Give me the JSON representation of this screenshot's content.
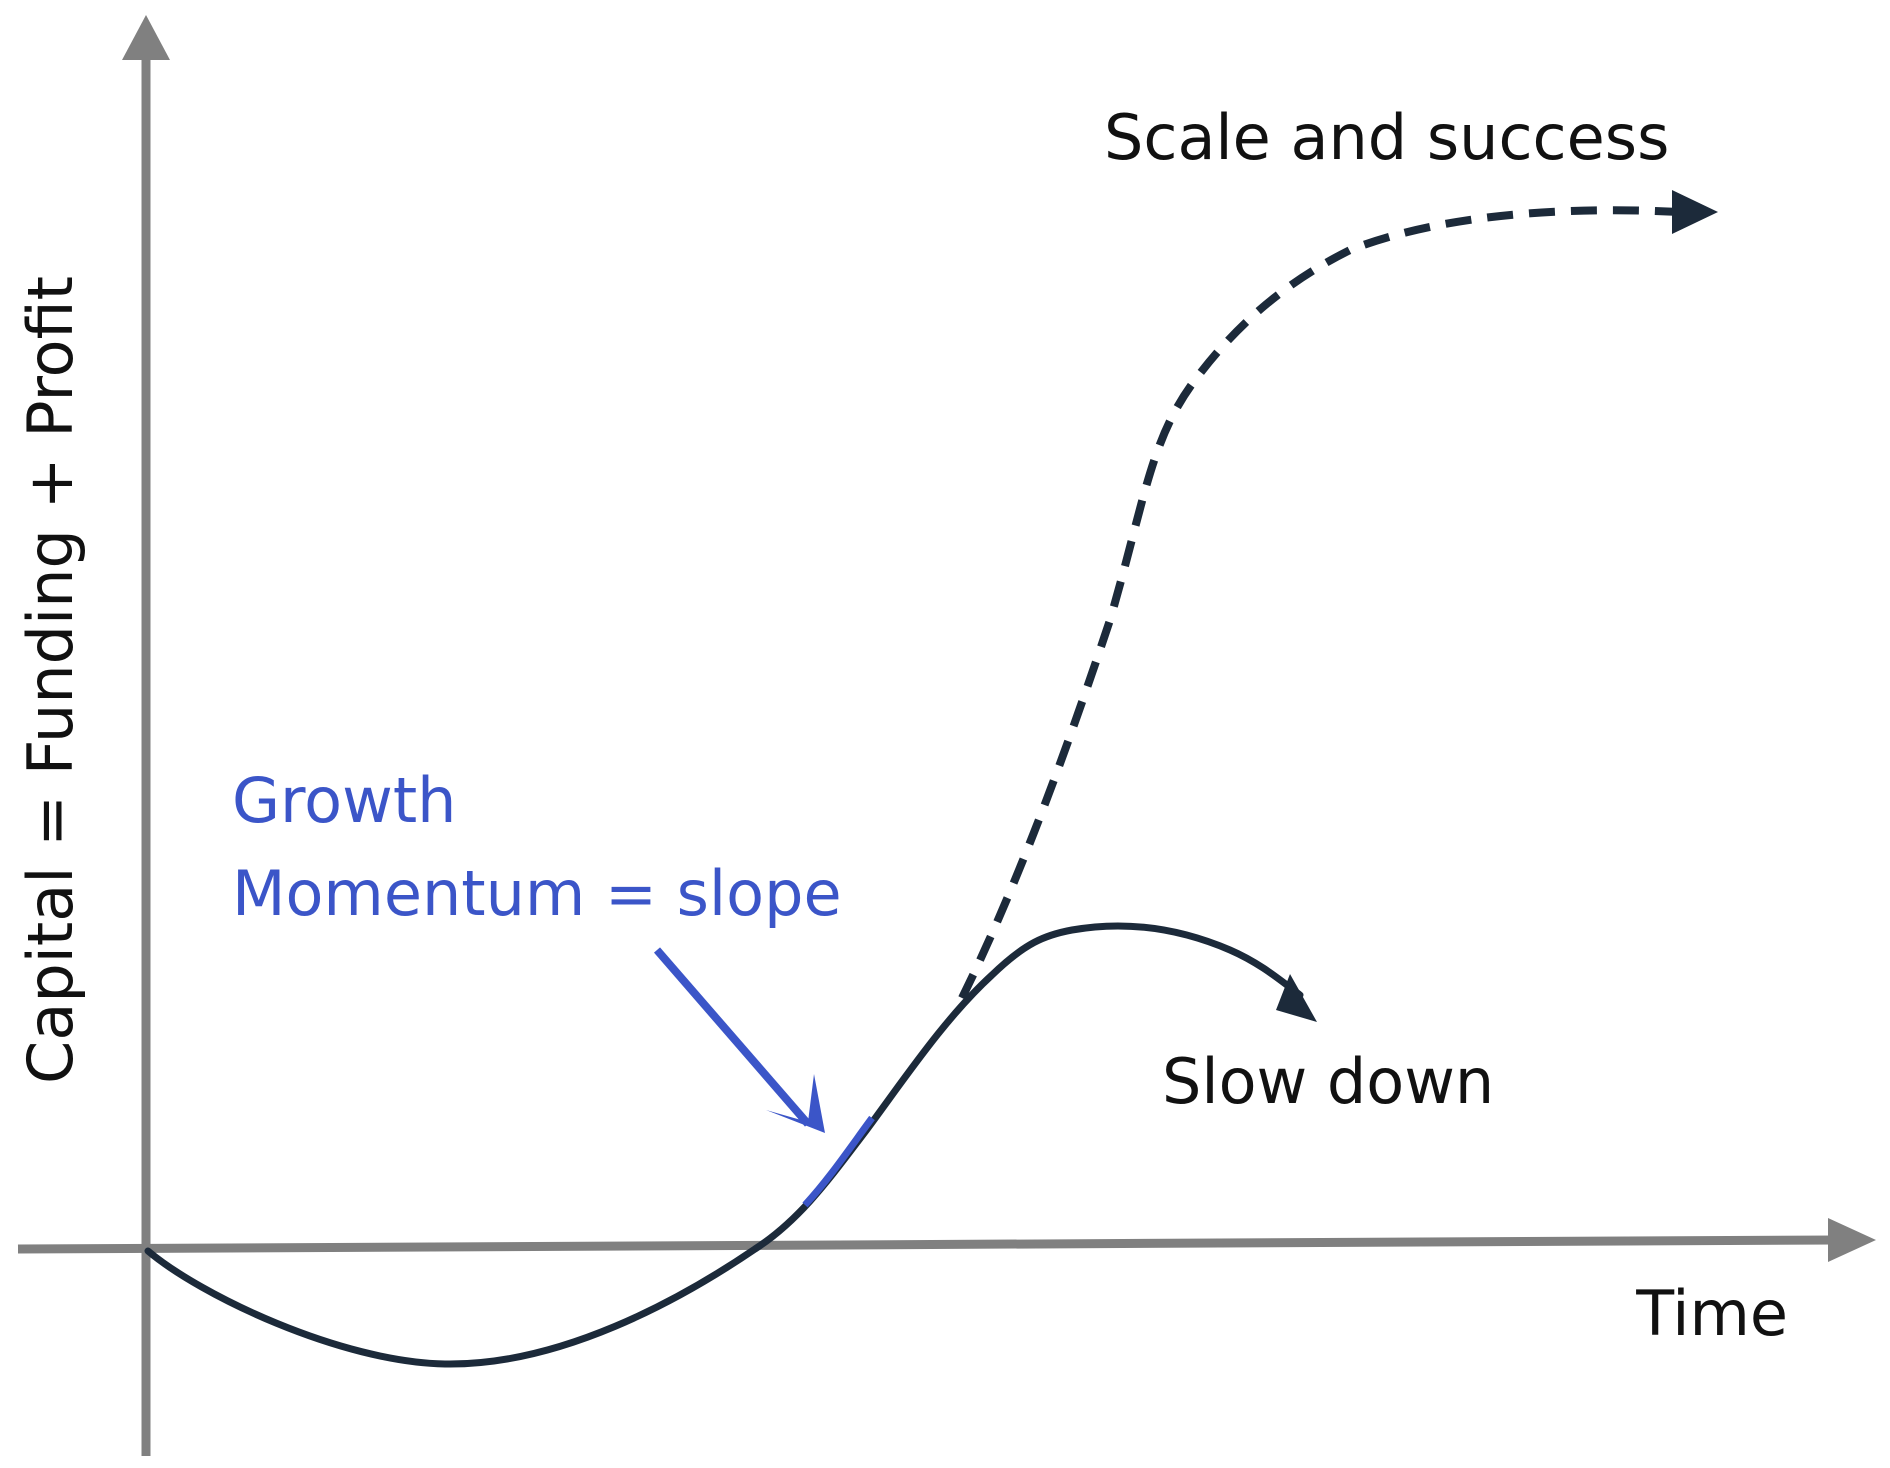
{
  "colors": {
    "axis": "#808080",
    "curve": "#1c2a3a",
    "accent": "#3b55c8",
    "background": "#ffffff"
  },
  "y_axis": {
    "label": "Capital = Funding + Profit"
  },
  "x_axis": {
    "label": "Time"
  },
  "annotations": {
    "scale": "Scale and success",
    "slow": "Slow down",
    "growth": "Growth",
    "momentum": "Momentum = slope"
  },
  "icons": {
    "y_arrow": "arrow-up-icon",
    "x_arrow": "arrow-right-icon",
    "scale_arrow": "arrowhead-right-icon",
    "slow_arrow": "arrowhead-down-right-icon",
    "pointer_arrow": "arrow-down-right-icon"
  }
}
